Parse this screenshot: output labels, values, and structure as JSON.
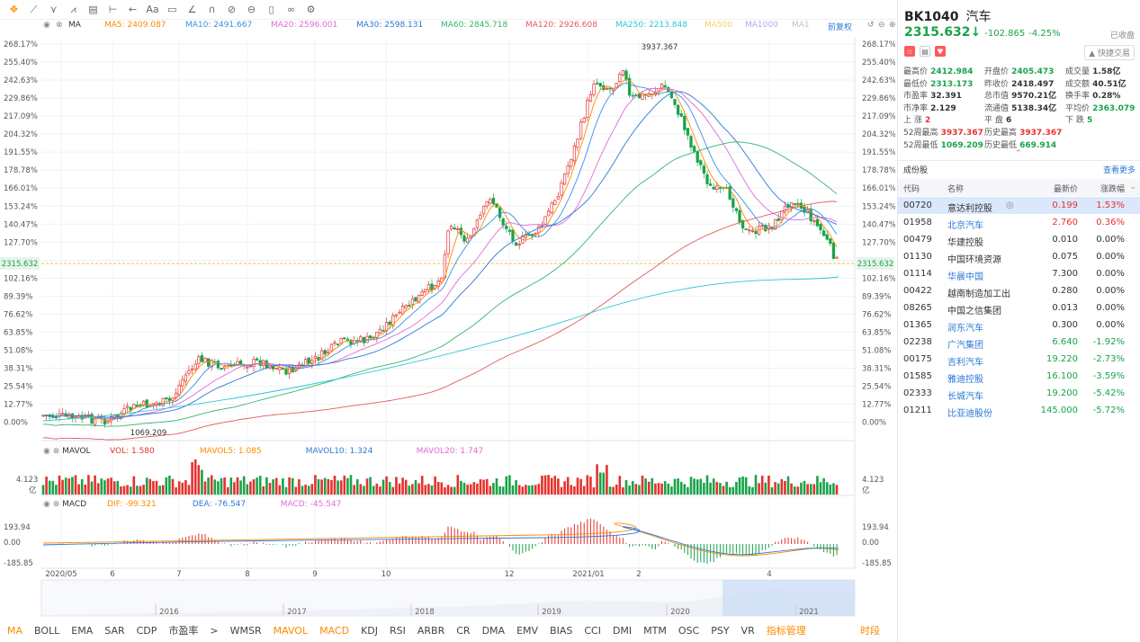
{
  "toolbar": {
    "icons": [
      "move-crosshair-icon",
      "line-tool-icon",
      "pitchfork-icon",
      "wave-tool-icon",
      "measure-icon",
      "range-icon",
      "arrow-icon",
      "text-icon",
      "comment-icon",
      "magnet-icon",
      "link-icon",
      "eraser-icon",
      "trash-icon",
      "compare-icon",
      "settings-icon"
    ],
    "text_tool": "Aa"
  },
  "ma_legend": {
    "label": "MA",
    "ma5": "MA5: 2409.087",
    "ma10": "MA10: 2491.667",
    "ma20": "MA20: 2596.001",
    "ma30": "MA30: 2598.131",
    "ma60": "MA60: 2845.718",
    "ma120": "MA120: 2926.608",
    "ma250": "MA250: 2213.848",
    "ma500": "MA500",
    "ma1000": "MA1000",
    "ma_last": "MA1",
    "adjust": "前复权"
  },
  "y_axis": [
    "268.17%",
    "255.40%",
    "242.63%",
    "229.86%",
    "217.09%",
    "204.32%",
    "191.55%",
    "178.78%",
    "166.01%",
    "153.24%",
    "140.47%",
    "127.70%",
    "",
    "102.16%",
    "89.39%",
    "76.62%",
    "63.85%",
    "51.08%",
    "38.31%",
    "25.54%",
    "12.77%",
    "0.00%"
  ],
  "current_price_tag": "2315.632",
  "high_label": "3937.367",
  "low_label": "1069.209",
  "vol_legend": {
    "name": "MAVOL",
    "vol": "VOL: 1.580",
    "mavol5": "MAVOL5: 1.085",
    "mavol10": "MAVOL10: 1.324",
    "mavol20": "MAVOL20: 1.747",
    "axis_top": "4.123",
    "axis_unit": "亿"
  },
  "macd_legend": {
    "name": "MACD",
    "dif": "DIF: -99.321",
    "dea": "DEA: -76.547",
    "macd": "MACD: -45.547",
    "ticks": [
      "193.94",
      "0.00",
      "-185.85"
    ]
  },
  "x_axis": [
    "2020/05",
    "6",
    "7",
    "8",
    "9",
    "10",
    "12",
    "2021/01",
    "2",
    "4"
  ],
  "nav_years": [
    "2016",
    "2017",
    "2018",
    "2019",
    "2020",
    "2021"
  ],
  "bottom_tabs": [
    "MA",
    "BOLL",
    "EMA",
    "SAR",
    "CDP",
    "市盈率",
    ">",
    "WMSR",
    "MAVOL",
    "MACD",
    "KDJ",
    "RSI",
    "ARBR",
    "CR",
    "DMA",
    "EMV",
    "BIAS",
    "CCI",
    "DMI",
    "MTM",
    "OSC",
    "PSY",
    "VR",
    "指标管理",
    "时段"
  ],
  "right": {
    "code": "BK1040",
    "name": "汽车",
    "price": "2315.632",
    "arrow": "↓",
    "change": "-102.865",
    "pct": "-4.25%",
    "status": "已收盘",
    "follow": "快捷交易",
    "stats": [
      [
        "最高价",
        "2412.984",
        "开盘价",
        "2405.473",
        "成交量",
        "1.58亿"
      ],
      [
        "最低价",
        "2313.173",
        "昨收价",
        "2418.497",
        "成交额",
        "40.51亿"
      ],
      [
        "市盈率",
        "32.391",
        "总市值",
        "9570.21亿",
        "换手率",
        "0.28%"
      ],
      [
        "市净率",
        "2.129",
        "流通值",
        "5138.34亿",
        "平均价",
        "2363.079"
      ],
      [
        "上 涨",
        "2",
        "平 盘",
        "6",
        "下 跌",
        "5"
      ],
      [
        "52周最高",
        "3937.367",
        "历史最高",
        "3937.367",
        "",
        ""
      ],
      [
        "52周最低",
        "1069.209",
        "历史最低",
        "669.914",
        "",
        ""
      ]
    ],
    "section": "成份股",
    "more": "查看更多",
    "headers": [
      "代码",
      "名称",
      "最新价",
      "涨跌幅"
    ],
    "rows": [
      [
        "00720",
        "意达利控股",
        "0.199",
        "1.53%"
      ],
      [
        "01958",
        "北京汽车",
        "2.760",
        "0.36%"
      ],
      [
        "00479",
        "华建控股",
        "0.010",
        "0.00%"
      ],
      [
        "01130",
        "中国环境资源",
        "0.075",
        "0.00%"
      ],
      [
        "01114",
        "华晨中国",
        "7.300",
        "0.00%"
      ],
      [
        "00422",
        "越南制造加工出",
        "0.280",
        "0.00%"
      ],
      [
        "08265",
        "中国之信集团",
        "0.013",
        "0.00%"
      ],
      [
        "01365",
        "润东汽车",
        "0.300",
        "0.00%"
      ],
      [
        "02238",
        "广汽集团",
        "6.640",
        "-1.92%"
      ],
      [
        "00175",
        "吉利汽车",
        "19.220",
        "-2.73%"
      ],
      [
        "01585",
        "雅迪控股",
        "16.100",
        "-3.59%"
      ],
      [
        "02333",
        "长城汽车",
        "19.200",
        "-5.42%"
      ],
      [
        "01211",
        "比亚迪股份",
        "145.000",
        "-5.72%"
      ]
    ]
  },
  "colors": {
    "up": "#e5322d",
    "down": "#1aa34a",
    "accent": "#ff8a00",
    "link": "#2b79d6"
  }
}
